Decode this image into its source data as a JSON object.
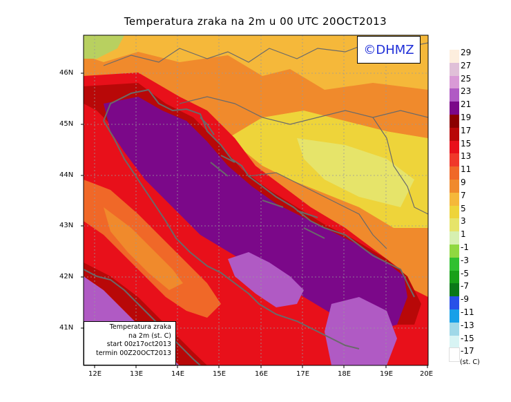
{
  "title": "Temperatura zraka na 2m u 00 UTC 20OCT2013",
  "logo": "©DHMZ",
  "info": {
    "line1": "Temperatura zraka",
    "line2": "na 2m (st. C)",
    "line3": "start 00z17oct2013",
    "line4": "termin 00Z20OCT2013"
  },
  "lat_labels": [
    "46N",
    "45N",
    "44N",
    "43N",
    "42N",
    "41N"
  ],
  "lon_labels": [
    "12E",
    "13E",
    "14E",
    "15E",
    "16E",
    "17E",
    "18E",
    "19E",
    "20E"
  ],
  "legend": {
    "unit": "(st. C)",
    "labels": [
      "29",
      "27",
      "25",
      "23",
      "21",
      "19",
      "17",
      "15",
      "13",
      "11",
      "9",
      "7",
      "5",
      "3",
      "1",
      "-1",
      "-3",
      "-5",
      "-7",
      "-9",
      "-11",
      "-13",
      "-15",
      "-17"
    ],
    "colors": [
      "#fdeede",
      "#e0c0d8",
      "#d99ad6",
      "#b05ac4",
      "#7b0889",
      "#8b0000",
      "#b80808",
      "#e8101a",
      "#f0382a",
      "#f06828",
      "#f08a2c",
      "#f5b83a",
      "#eed43a",
      "#e6e46a",
      "#d6f0b0",
      "#90d840",
      "#30c030",
      "#18a018",
      "#0a7818",
      "#2850e8",
      "#18a0e8",
      "#a0d8e8",
      "#d8f4f4",
      "#ffffff"
    ]
  },
  "colors": {
    "coast": "#6a6a6a",
    "grid": "#9a9a9a",
    "logo_text": "#1f2fd8"
  }
}
